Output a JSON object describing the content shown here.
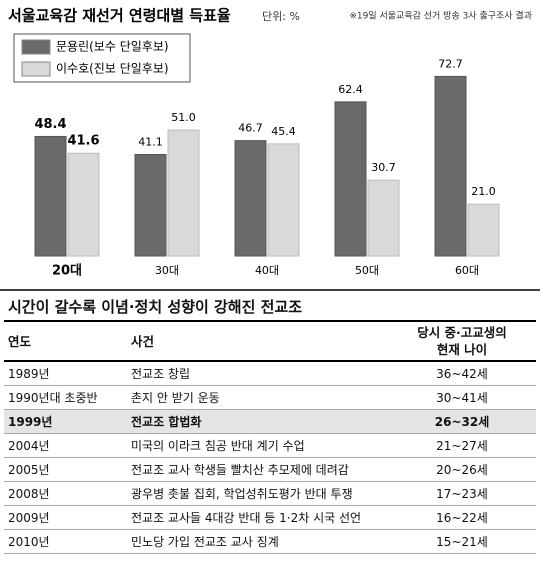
{
  "chart_data": {
    "type": "bar",
    "title": "서울교육감 재선거 연령대별 득표율",
    "unit": "단위: %",
    "note": "※19일 서울교육감 선거 방송 3사 출구조사 결과",
    "categories": [
      "20대",
      "30대",
      "40대",
      "50대",
      "60대"
    ],
    "series": [
      {
        "name": "문용린(보수 단일후보)",
        "color": "#6a6a6a",
        "values": [
          48.4,
          41.1,
          46.7,
          62.4,
          72.7
        ],
        "value_labels": [
          "48.4",
          "41.1",
          "46.7",
          "62.4",
          "72.7"
        ]
      },
      {
        "name": "이수호(진보 단일후보)",
        "color": "#d9d9d9",
        "values": [
          41.6,
          51.0,
          45.4,
          30.7,
          21.0
        ],
        "value_labels": [
          "41.6",
          "51.0",
          "45.4",
          "30.7",
          "21.0"
        ]
      }
    ]
  },
  "table": {
    "title": "시간이 갈수록 이념·정치 성향이 강해진 전교조",
    "headers": [
      "연도",
      "사건",
      "당시 중·고교생의\n현재 나이"
    ],
    "rows": [
      [
        "1989년",
        "전교조 창립",
        "36~42세"
      ],
      [
        "1990년대 초중반",
        "촌지 안 받기 운동",
        "30~41세"
      ],
      [
        "1999년",
        "전교조 합법화",
        "26~32세"
      ],
      [
        "2004년",
        "미국의 이라크 침공 반대 계기 수업",
        "21~27세"
      ],
      [
        "2005년",
        "전교조 교사 학생들 빨치산 추모제에 데려감",
        "20~26세"
      ],
      [
        "2008년",
        "광우병 촛불 집회, 학업성취도평가 반대 투쟁",
        "17~23세"
      ],
      [
        "2009년",
        "전교조 교사들 4대강 반대 등 1·2차 시국 선언",
        "16~22세"
      ],
      [
        "2010년",
        "민노당 가입 전교조 교사 징계",
        "15~21세"
      ]
    ]
  }
}
